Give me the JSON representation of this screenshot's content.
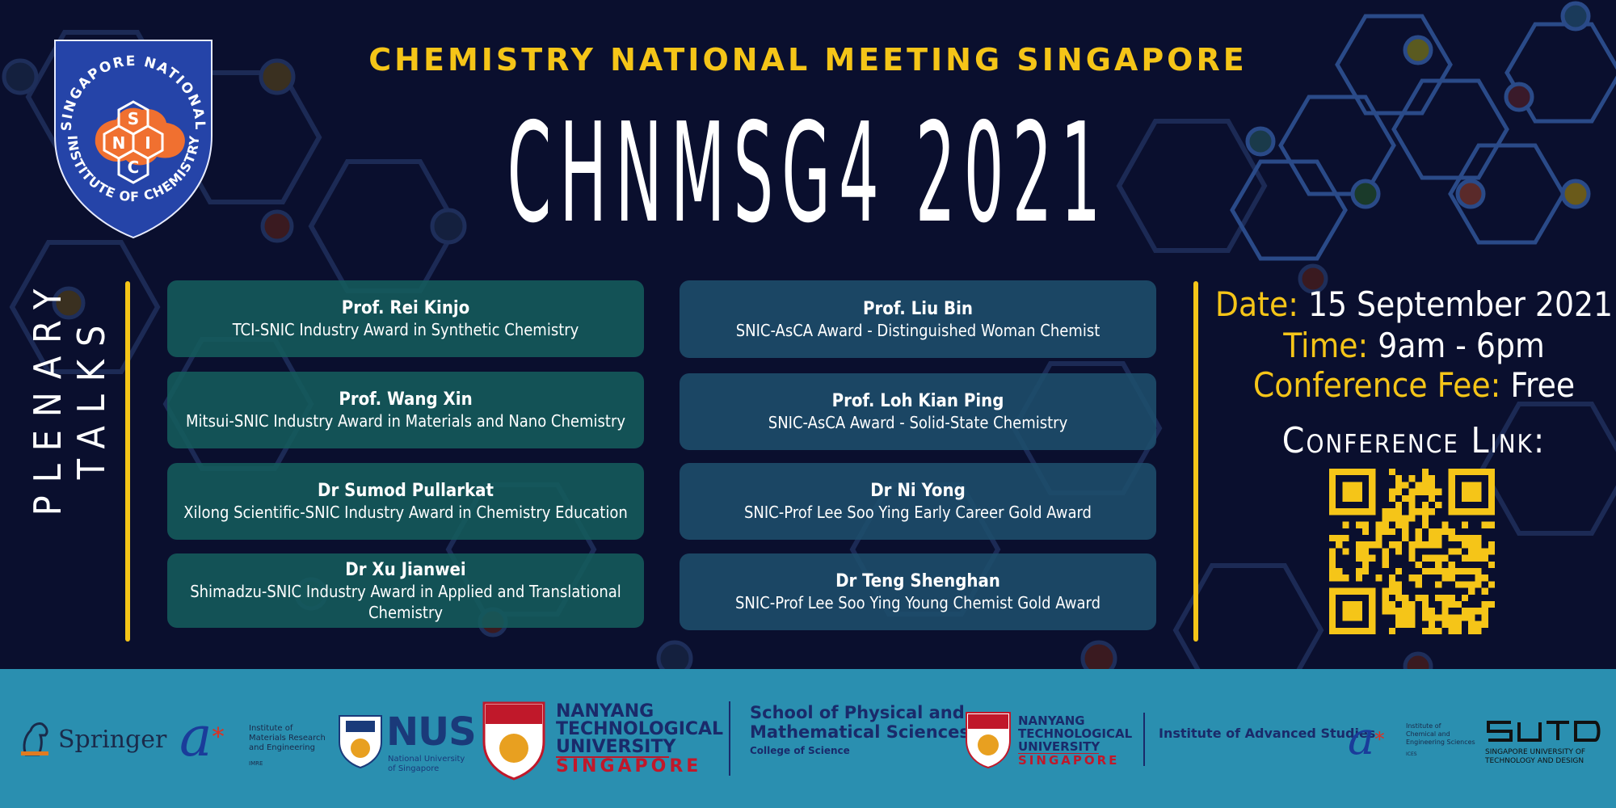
{
  "header": {
    "kicker": "CHEMISTRY NATIONAL MEETING SINGAPORE",
    "event_title": "CHNMSG4 2021"
  },
  "emblem": {
    "ring_text": "SINGAPORE NATIONAL INSTITUTE OF CHEMISTRY",
    "letters": [
      "S",
      "N",
      "I",
      "C"
    ]
  },
  "plenary": {
    "label": "PLENARY TALKS",
    "left": [
      {
        "name": "Prof. Rei Kinjo",
        "award": "TCI-SNIC Industry Award in Synthetic Chemistry"
      },
      {
        "name": "Prof. Wang Xin",
        "award": "Mitsui-SNIC Industry Award in Materials and Nano Chemistry"
      },
      {
        "name": "Dr Sumod Pullarkat",
        "award": "Xilong Scientific-SNIC Industry Award in Chemistry Education"
      },
      {
        "name": "Dr Xu Jianwei",
        "award": "Shimadzu-SNIC Industry Award in Applied and Translational Chemistry"
      }
    ],
    "right": [
      {
        "name": "Prof. Liu Bin",
        "award": "SNIC-AsCA Award - Distinguished Woman Chemist"
      },
      {
        "name": "Prof. Loh Kian Ping",
        "award": "SNIC-AsCA Award - Solid-State Chemistry"
      },
      {
        "name": "Dr Ni Yong",
        "award": "SNIC-Prof Lee Soo Ying Early Career Gold Award"
      },
      {
        "name": "Dr Teng Shenghan",
        "award": "SNIC-Prof Lee Soo Ying Young Chemist Gold Award"
      }
    ]
  },
  "info": {
    "date_label": "Date:",
    "date_value": "15 September 2021",
    "time_label": "Time:",
    "time_value": "9am - 6pm",
    "fee_label": "Conference Fee:",
    "fee_value": "Free",
    "link_label": "Conference Link:"
  },
  "sponsors": {
    "springer": "Springer",
    "imre_line1": "Institute of",
    "imre_line2": "Materials Research",
    "imre_line3": "and Engineering",
    "imre_abbr": "IMRE",
    "nus": "NUS",
    "nus_sub1": "National University",
    "nus_sub2": "of Singapore",
    "ntu_line1": "NANYANG",
    "ntu_line2": "TECHNOLOGICAL",
    "ntu_line3": "UNIVERSITY",
    "ntu_line4": "SINGAPORE",
    "spms_line1": "School of Physical and",
    "spms_line2": "Mathematical Sciences",
    "spms_line3": "College of Science",
    "ias": "Institute of Advanced Studies",
    "ices_line1": "Institute of",
    "ices_line2": "Chemical and",
    "ices_line3": "Engineering Sciences",
    "ices_abbr": "ICES",
    "sutd_mark": "SUTD",
    "sutd_line1": "SINGAPORE UNIVERSITY OF",
    "sutd_line2": "TECHNOLOGY AND DESIGN"
  },
  "colors": {
    "background": "#0a0f2e",
    "accent": "#f5c518",
    "footer": "#2a8fb0",
    "card_left": "#145c5c",
    "card_right": "#1e4e6c",
    "emblem_blue": "#2544a8",
    "emblem_orange": "#f07030"
  }
}
